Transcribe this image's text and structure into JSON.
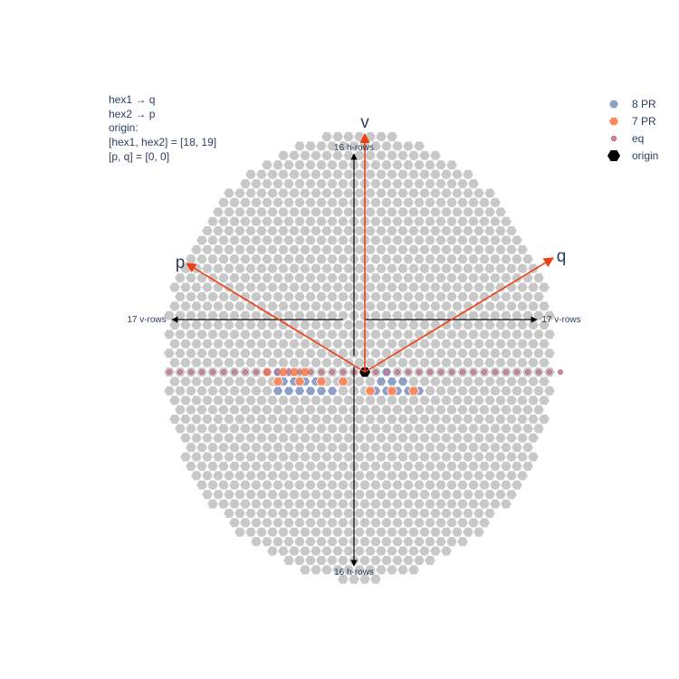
{
  "annotation": {
    "lines": [
      "hex1 → q",
      "hex2 → p",
      "origin:",
      "[hex1, hex2] = [18, 19]",
      "[p, q] = [0, 0]"
    ]
  },
  "axes": {
    "v": "v",
    "p": "p",
    "q": "q",
    "vector_color": "#ef3e12"
  },
  "dimensions": {
    "top": "16 h-rows",
    "bottom": "16 h-rows",
    "left": "17 v-rows",
    "right": "17 v-rows"
  },
  "legend": {
    "items": [
      {
        "label": "8 PR",
        "color": "#8fa0c8",
        "symbol": "hexagon"
      },
      {
        "label": "7 PR",
        "color": "#f98a5e",
        "symbol": "hexagon"
      },
      {
        "label": "eq",
        "color": "#d48393",
        "symbol": "circle"
      },
      {
        "label": "origin",
        "color": "#000000",
        "symbol": "hexagon"
      }
    ]
  },
  "chart_data": {
    "type": "scatter",
    "grid": false,
    "legend_position": "top-right",
    "background_color": "#c8c8c8",
    "series": [
      {
        "name": "8 PR",
        "color": "#8fa0c8",
        "points": [
          [
            -16,
            2
          ],
          [
            -14,
            2
          ],
          [
            -12,
            2
          ],
          [
            -10,
            2
          ],
          [
            -8,
            2
          ],
          [
            -6,
            2
          ],
          [
            -15,
            1
          ],
          [
            -13,
            1
          ],
          [
            -11,
            1
          ],
          [
            -9,
            1
          ],
          [
            -16,
            0
          ],
          [
            -14,
            0
          ],
          [
            2,
            2
          ],
          [
            4,
            2
          ],
          [
            6,
            2
          ],
          [
            8,
            2
          ],
          [
            10,
            2
          ],
          [
            3,
            1
          ],
          [
            5,
            1
          ],
          [
            7,
            1
          ],
          [
            4,
            0
          ]
        ]
      },
      {
        "name": "7 PR",
        "color": "#f98a5e",
        "points": [
          [
            -16,
            1
          ],
          [
            -12,
            1
          ],
          [
            -8,
            1
          ],
          [
            -4,
            1
          ],
          [
            -18,
            0
          ],
          [
            -15,
            0
          ],
          [
            -13,
            0
          ],
          [
            -11,
            0
          ],
          [
            1,
            2
          ],
          [
            5,
            2
          ],
          [
            9,
            2
          ]
        ]
      },
      {
        "name": "eq",
        "color": "#d48393",
        "points": [
          [
            -36,
            0
          ],
          [
            -34,
            0
          ],
          [
            -32,
            0
          ],
          [
            -30,
            0
          ],
          [
            -28,
            0
          ],
          [
            -26,
            0
          ],
          [
            -24,
            0
          ],
          [
            -22,
            0
          ],
          [
            -20,
            0
          ],
          [
            -18,
            0
          ],
          [
            -16,
            0
          ],
          [
            -14,
            0
          ],
          [
            -12,
            0
          ],
          [
            -10,
            0
          ],
          [
            -8,
            0
          ],
          [
            -6,
            0
          ],
          [
            -4,
            0
          ],
          [
            -2,
            0
          ],
          [
            0,
            0
          ],
          [
            2,
            0
          ],
          [
            4,
            0
          ],
          [
            6,
            0
          ],
          [
            8,
            0
          ],
          [
            10,
            0
          ],
          [
            12,
            0
          ],
          [
            14,
            0
          ],
          [
            16,
            0
          ],
          [
            18,
            0
          ],
          [
            20,
            0
          ],
          [
            22,
            0
          ],
          [
            24,
            0
          ],
          [
            26,
            0
          ],
          [
            28,
            0
          ],
          [
            30,
            0
          ],
          [
            32,
            0
          ],
          [
            34,
            0
          ],
          [
            36,
            0
          ]
        ]
      },
      {
        "name": "origin",
        "color": "#000000",
        "points": [
          [
            0,
            0
          ]
        ]
      }
    ]
  }
}
